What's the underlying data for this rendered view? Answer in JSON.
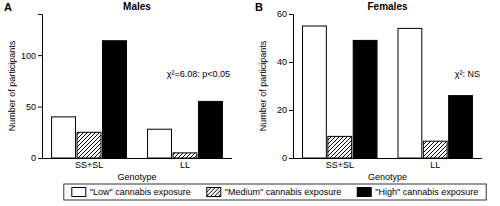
{
  "chart_data": [
    {
      "type": "bar",
      "panel_label": "A",
      "title": "Males",
      "x_label": "Genotype",
      "y_label": "Number of participants",
      "annotation": "χ²=6.08: p<0.05",
      "categories": [
        "SS+SL",
        "LL"
      ],
      "series": [
        {
          "name": "\"Low\" cannabis exposure",
          "color": "#ffffff",
          "values": [
            40,
            28
          ]
        },
        {
          "name": "\"Medium\" cannabis exposure",
          "color": "#000000",
          "values": [
            25,
            5
          ]
        },
        {
          "name": "\"High\" cannabis exposure",
          "color": "#000000",
          "values": [
            114,
            55
          ]
        }
      ],
      "ylim": [
        0,
        140
      ],
      "yticks": [
        0,
        50,
        100
      ],
      "legend": "bottom"
    },
    {
      "type": "bar",
      "panel_label": "B",
      "title": "Females",
      "x_label": "Genotype",
      "y_label": "Number of participants",
      "annotation": "χ²: NS",
      "categories": [
        "SS+SL",
        "LL"
      ],
      "series": [
        {
          "color": "#ffffff",
          "values": [
            55,
            54
          ]
        },
        {
          "color": "#000000",
          "values": [
            9,
            7
          ]
        },
        {
          "color": "#000000",
          "values": [
            49,
            26
          ]
        }
      ],
      "ylim": [
        0,
        60
      ],
      "yticks": [
        0,
        20,
        40,
        60
      ]
    }
  ]
}
